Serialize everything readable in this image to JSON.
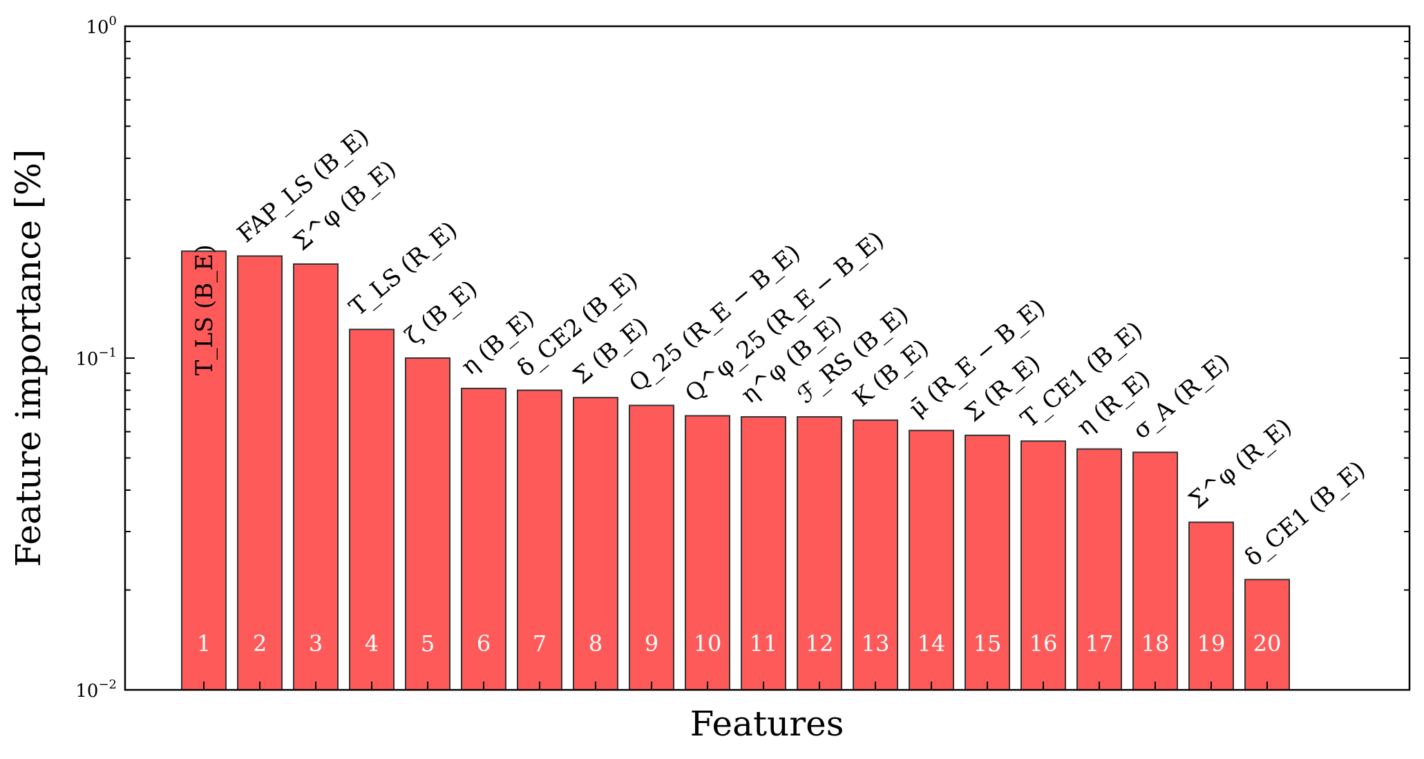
{
  "chart_data": {
    "type": "bar",
    "title": "",
    "xlabel": "Features",
    "ylabel": "Feature importance [%]",
    "yscale": "log",
    "ylim": [
      0.01,
      1
    ],
    "yticks": [
      {
        "value": 1,
        "base": "10",
        "exp": "0"
      },
      {
        "value": 0.1,
        "base": "10",
        "exp": "−1"
      },
      {
        "value": 0.01,
        "base": "10",
        "exp": "−2"
      }
    ],
    "bar_color": "#ff5a5a",
    "bar_edge_color": "#333333",
    "categories": [
      "1",
      "2",
      "3",
      "4",
      "5",
      "6",
      "7",
      "8",
      "9",
      "10",
      "11",
      "12",
      "13",
      "14",
      "15",
      "16",
      "17",
      "18",
      "19",
      "20"
    ],
    "values": [
      0.21,
      0.203,
      0.192,
      0.122,
      0.1,
      0.081,
      0.08,
      0.076,
      0.072,
      0.067,
      0.0665,
      0.0665,
      0.065,
      0.0605,
      0.0585,
      0.0562,
      0.0532,
      0.052,
      0.032,
      0.0215
    ],
    "feature_labels": [
      "T_LS (B_E)",
      "FAP_LS (B_E)",
      "Σ^φ (B_E)",
      "T_LS (R_E)",
      "ζ (B_E)",
      "η (B_E)",
      "δ_CE2 (B_E)",
      "Σ (B_E)",
      "Q_25 (R_E − B_E)",
      "Q^φ_25 (R_E − B_E)",
      "η^φ (B_E)",
      "ℱ_RS (B_E)",
      "K (B_E)",
      "μ̄ (R_E − B_E)",
      "Σ (R_E)",
      "T_CE1 (B_E)",
      "η (R_E)",
      "σ_A (R_E)",
      "Σ^φ (R_E)",
      "δ_CE1 (B_E)"
    ]
  }
}
